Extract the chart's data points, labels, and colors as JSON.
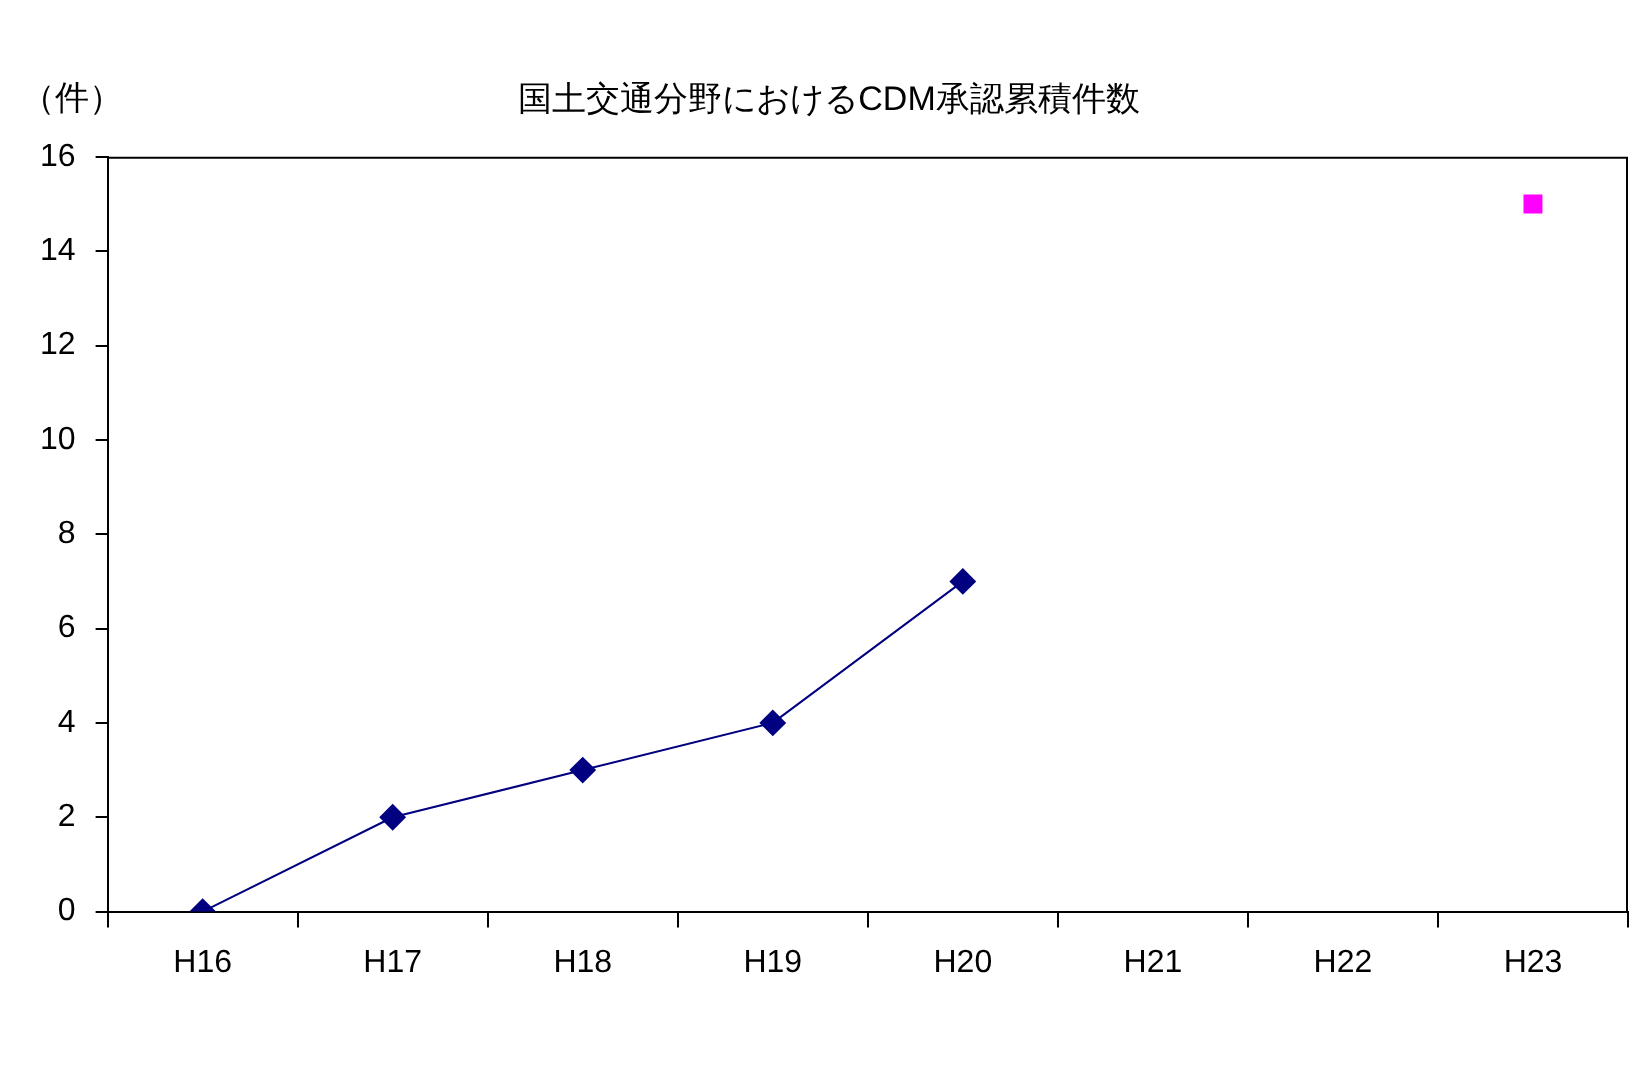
{
  "chart_data": {
    "type": "line",
    "title": "国土交通分野におけるCDM承認累積件数",
    "ylabel": "（件）",
    "categories": [
      "H16",
      "H17",
      "H18",
      "H19",
      "H20",
      "H21",
      "H22",
      "H23"
    ],
    "series": [
      {
        "type": "line",
        "color": "#000080",
        "marker": "diamond",
        "values": [
          0,
          2,
          3,
          4,
          7,
          null,
          null,
          null
        ]
      },
      {
        "type": "scatter",
        "color": "#ff00ff",
        "marker": "square",
        "values": [
          null,
          null,
          null,
          null,
          null,
          null,
          null,
          15
        ]
      }
    ],
    "ylim": [
      0,
      16
    ],
    "yticks": [
      0,
      2,
      4,
      6,
      8,
      10,
      12,
      14,
      16
    ],
    "grid": false,
    "legend": false
  }
}
